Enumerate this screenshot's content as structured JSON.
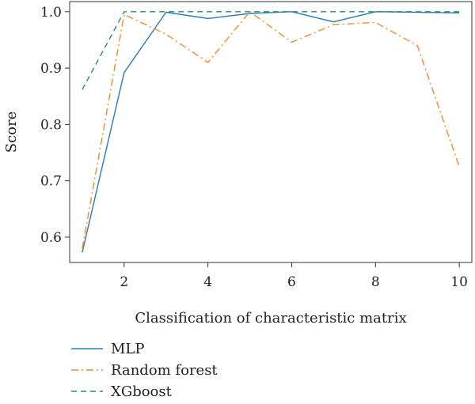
{
  "chart_data": {
    "type": "line",
    "title": "",
    "xlabel": "Classification of characteristic matrix",
    "ylabel": "Score",
    "xlim": [
      0.7,
      10.3
    ],
    "ylim": [
      0.555,
      1.018
    ],
    "xticks": [
      2,
      4,
      6,
      8,
      10
    ],
    "yticks": [
      0.6,
      0.7,
      0.8,
      0.9,
      1.0
    ],
    "ytick_labels": [
      "0.6",
      "0.7",
      "0.8",
      "0.9",
      "1.0"
    ],
    "grid": false,
    "legend_position": "bottom-left, below plot",
    "x": [
      1,
      2,
      3,
      4,
      5,
      6,
      7,
      8,
      9,
      10
    ],
    "series": [
      {
        "name": "MLP",
        "color": "#2b7bb9",
        "style": "solid",
        "values": [
          0.573,
          0.892,
          0.999,
          0.988,
          0.997,
          1.0,
          0.982,
          1.0,
          0.999,
          0.998
        ]
      },
      {
        "name": "Random forest",
        "color": "#f5892c",
        "style": "dashdot",
        "values": [
          0.58,
          0.995,
          0.96,
          0.91,
          1.0,
          0.946,
          0.977,
          0.981,
          0.94,
          0.725
        ]
      },
      {
        "name": "XGboost",
        "color": "#2a8c6a",
        "style": "dashed",
        "values": [
          0.862,
          1.0,
          1.0,
          1.0,
          1.0,
          1.0,
          1.0,
          1.0,
          1.0,
          1.0
        ]
      }
    ]
  }
}
